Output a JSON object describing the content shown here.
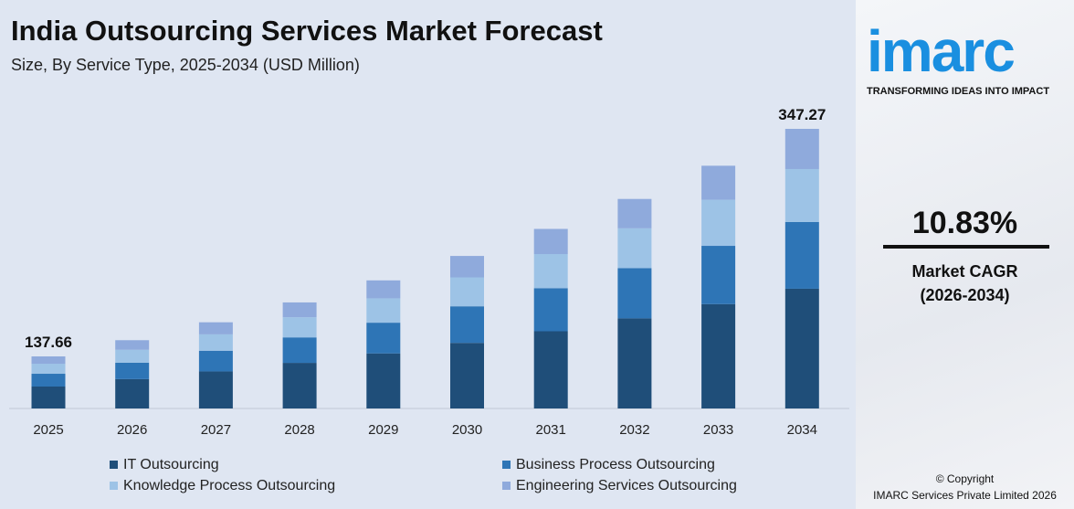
{
  "header": {
    "title": "India Outsourcing Services Market Forecast",
    "subtitle": "Size, By Service Type, 2025-2034 (USD Million)"
  },
  "side": {
    "logo": "imarc",
    "tagline": "TRANSFORMING IDEAS INTO IMPACT",
    "cagr": "10.83%",
    "cagr_label": "Market CAGR",
    "cagr_period": "(2026-2034)",
    "copyright": "© Copyright",
    "company": "IMARC Services Private Limited 2026"
  },
  "chart_data": {
    "type": "bar",
    "stacked": true,
    "title": "India Outsourcing Services Market Forecast",
    "subtitle": "Size, By Service Type, 2025-2034 (USD Million)",
    "categories": [
      "2025",
      "2026",
      "2027",
      "2028",
      "2029",
      "2030",
      "2031",
      "2032",
      "2033",
      "2034"
    ],
    "totals": [
      137.66,
      152.6,
      169.1,
      187.4,
      207.7,
      230.2,
      255.1,
      282.7,
      313.3,
      347.27
    ],
    "data_labels": {
      "2025": "137.66",
      "2034": "347.27"
    },
    "series": [
      {
        "name": "IT Outsourcing",
        "color": "#1f4e79",
        "values": [
          58.0,
          65.6,
          72.7,
          80.6,
          89.3,
          99.0,
          109.7,
          121.6,
          134.7,
          148.7
        ]
      },
      {
        "name": "Business Process Outsourcing",
        "color": "#2e75b6",
        "values": [
          33.8,
          36.6,
          40.6,
          45.0,
          49.8,
          55.2,
          61.2,
          67.8,
          75.2,
          82.8
        ]
      },
      {
        "name": "Knowledge Process Outsourcing",
        "color": "#9dc3e6",
        "values": [
          26.6,
          29.0,
          32.1,
          35.6,
          39.5,
          43.7,
          48.5,
          53.7,
          59.5,
          65.8
        ]
      },
      {
        "name": "Engineering Services Outsourcing",
        "color": "#8faadc",
        "values": [
          19.3,
          21.4,
          23.7,
          26.2,
          29.1,
          32.3,
          35.7,
          39.6,
          43.9,
          49.9
        ]
      }
    ],
    "legend": "bottom",
    "grid": false
  }
}
